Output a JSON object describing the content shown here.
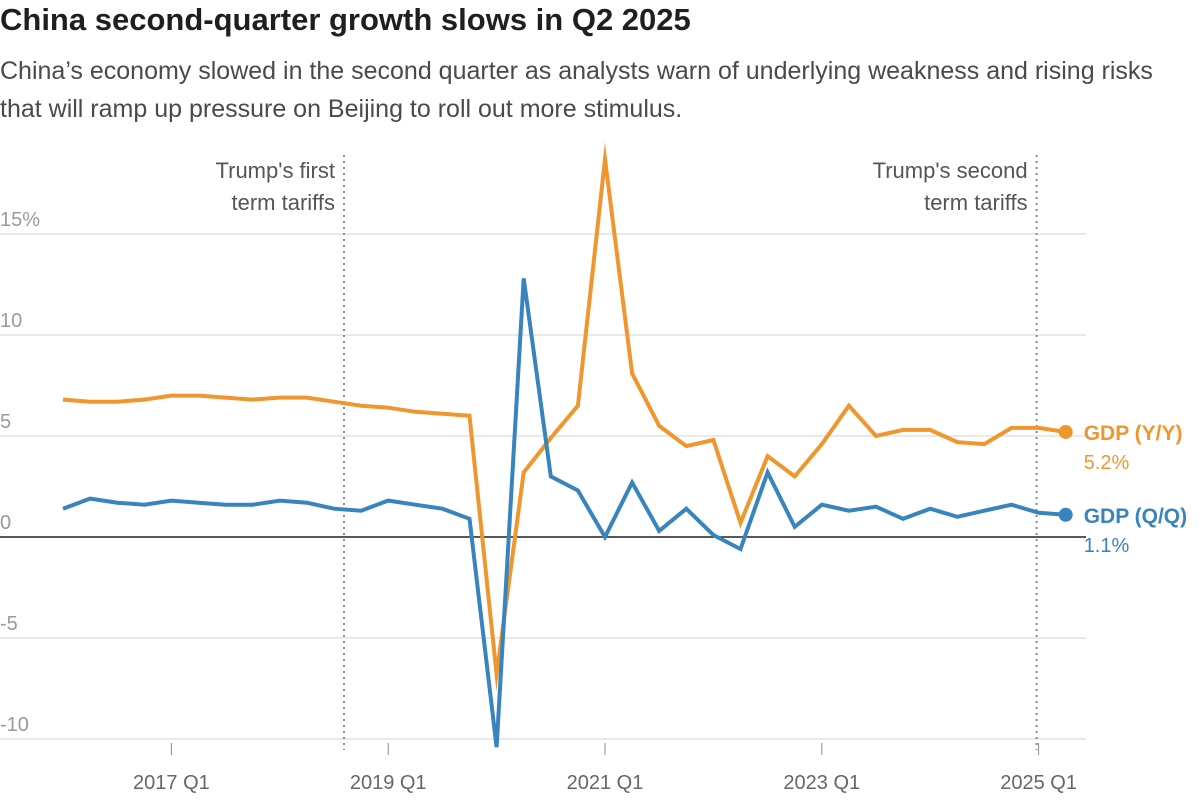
{
  "title": "China second-quarter growth slows in Q2 2025",
  "subtitle": "China’s economy slowed in the second quarter as analysts warn of underlying weakness and rising risks that will ramp up pressure on Beijing to roll out more stimulus.",
  "chart_data": {
    "type": "line",
    "x": [
      "2016 Q1",
      "2016 Q2",
      "2016 Q3",
      "2016 Q4",
      "2017 Q1",
      "2017 Q2",
      "2017 Q3",
      "2017 Q4",
      "2018 Q1",
      "2018 Q2",
      "2018 Q3",
      "2018 Q4",
      "2019 Q1",
      "2019 Q2",
      "2019 Q3",
      "2019 Q4",
      "2020 Q1",
      "2020 Q2",
      "2020 Q3",
      "2020 Q4",
      "2021 Q1",
      "2021 Q2",
      "2021 Q3",
      "2021 Q4",
      "2022 Q1",
      "2022 Q2",
      "2022 Q3",
      "2022 Q4",
      "2023 Q1",
      "2023 Q2",
      "2023 Q3",
      "2023 Q4",
      "2024 Q1",
      "2024 Q2",
      "2024 Q3",
      "2024 Q4",
      "2025 Q1",
      "2025 Q2"
    ],
    "xticks": [
      "2017 Q1",
      "2019 Q1",
      "2021 Q1",
      "2023 Q1",
      "2025 Q1"
    ],
    "yticks": [
      {
        "value": 15,
        "label": "15%"
      },
      {
        "value": 10,
        "label": "10"
      },
      {
        "value": 5,
        "label": "5"
      },
      {
        "value": 0,
        "label": "0"
      },
      {
        "value": -5,
        "label": "-5"
      },
      {
        "value": -10,
        "label": "-10"
      }
    ],
    "ylim": [
      -10.5,
      19
    ],
    "grid": true,
    "series": [
      {
        "name": "GDP (Y/Y)",
        "color": "#f0962e",
        "end_label": "5.2%",
        "values": [
          6.8,
          6.7,
          6.7,
          6.8,
          7.0,
          7.0,
          6.9,
          6.8,
          6.9,
          6.9,
          6.7,
          6.5,
          6.4,
          6.2,
          6.1,
          6.0,
          -6.8,
          3.2,
          4.9,
          6.5,
          18.7,
          8.1,
          5.5,
          4.5,
          4.8,
          0.7,
          4.0,
          3.0,
          4.6,
          6.5,
          5.0,
          5.3,
          5.3,
          4.7,
          4.6,
          5.4,
          5.4,
          5.2
        ]
      },
      {
        "name": "GDP (Q/Q)",
        "color": "#3884bf",
        "end_label": "1.1%",
        "values": [
          1.4,
          1.9,
          1.7,
          1.6,
          1.8,
          1.7,
          1.6,
          1.6,
          1.8,
          1.7,
          1.4,
          1.3,
          1.8,
          1.6,
          1.4,
          0.9,
          -10.4,
          12.8,
          3.0,
          2.3,
          0.0,
          2.7,
          0.3,
          1.4,
          0.1,
          -0.6,
          3.2,
          0.5,
          1.6,
          1.3,
          1.5,
          0.9,
          1.4,
          1.0,
          1.3,
          1.6,
          1.2,
          1.1
        ]
      }
    ],
    "annotations": [
      {
        "text_lines": [
          "Trump's first",
          "term tariffs"
        ],
        "at_x": "2018 Q3",
        "align": "left-of-line"
      },
      {
        "text_lines": [
          "Trump's second",
          "term tariffs"
        ],
        "at_x": "2025 Q1",
        "align": "left-of-line"
      }
    ]
  }
}
